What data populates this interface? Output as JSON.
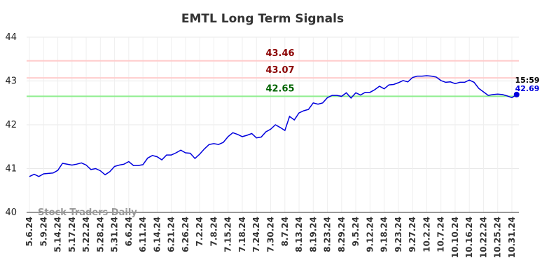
{
  "chart_data": {
    "type": "line",
    "title": "EMTL Long Term Signals",
    "watermark": "Stock Traders Daily",
    "color": "#0000dd",
    "categories": [
      "5.6.24",
      null,
      null,
      "5.9.24",
      null,
      null,
      "5.14.24",
      null,
      null,
      "5.17.24",
      null,
      null,
      "5.22.24",
      null,
      null,
      "5.28.24",
      null,
      null,
      "5.31.24",
      null,
      null,
      "6.6.24",
      null,
      null,
      "6.11.24",
      null,
      null,
      "6.14.24",
      null,
      null,
      "6.21.24",
      null,
      null,
      "6.26.24",
      null,
      null,
      "7.2.24",
      null,
      null,
      "7.8.24",
      null,
      null,
      "7.15.24",
      null,
      null,
      "7.18.24",
      null,
      null,
      "7.24.24",
      null,
      null,
      "7.30.24",
      null,
      null,
      "8.7.24",
      null,
      null,
      "8.13.24",
      null,
      null,
      "8.19.24",
      null,
      null,
      "8.23.24",
      null,
      null,
      "8.29.24",
      null,
      null,
      "9.5.24",
      null,
      null,
      "9.12.24",
      null,
      null,
      "9.18.24",
      null,
      null,
      "9.23.24",
      null,
      null,
      "9.27.24",
      null,
      null,
      "10.2.24",
      null,
      null,
      "10.7.24",
      null,
      null,
      "10.10.24",
      null,
      null,
      "10.16.24",
      null,
      null,
      "10.22.24",
      null,
      null,
      "10.25.24",
      null,
      null,
      "10.31.24",
      null
    ],
    "values": [
      40.82,
      40.87,
      40.82,
      40.88,
      40.89,
      40.9,
      40.96,
      41.12,
      41.1,
      41.08,
      41.1,
      41.13,
      41.08,
      40.98,
      41.0,
      40.95,
      40.86,
      40.93,
      41.05,
      41.08,
      41.1,
      41.16,
      41.07,
      41.07,
      41.09,
      41.24,
      41.3,
      41.27,
      41.2,
      41.31,
      41.31,
      41.36,
      41.42,
      41.36,
      41.35,
      41.23,
      41.33,
      41.45,
      41.55,
      41.57,
      41.55,
      41.6,
      41.73,
      41.82,
      41.78,
      41.73,
      41.76,
      41.8,
      41.7,
      41.72,
      41.84,
      41.9,
      42.0,
      41.94,
      41.87,
      42.19,
      42.11,
      42.27,
      42.32,
      42.35,
      42.5,
      42.47,
      42.5,
      42.62,
      42.67,
      42.67,
      42.65,
      42.73,
      42.61,
      42.73,
      42.68,
      42.74,
      42.74,
      42.8,
      42.88,
      42.82,
      42.91,
      42.92,
      42.96,
      43.01,
      42.98,
      43.08,
      43.11,
      43.11,
      43.12,
      43.11,
      43.09,
      43.01,
      42.97,
      42.98,
      42.94,
      42.97,
      42.97,
      43.02,
      42.97,
      42.83,
      42.75,
      42.67,
      42.69,
      42.7,
      42.69,
      42.66,
      42.62,
      42.69
    ],
    "last_time": "15:59",
    "hlines": [
      {
        "value": 43.46,
        "color": "#ffcccc",
        "text_color": "#8b0000"
      },
      {
        "value": 43.07,
        "color": "#ffcccc",
        "text_color": "#8b0000"
      },
      {
        "value": 42.65,
        "color": "#90ee90",
        "text_color": "#006400"
      }
    ],
    "ylim": [
      40,
      44
    ],
    "yticks": [
      40,
      41,
      42,
      43,
      44
    ],
    "grid": true
  }
}
